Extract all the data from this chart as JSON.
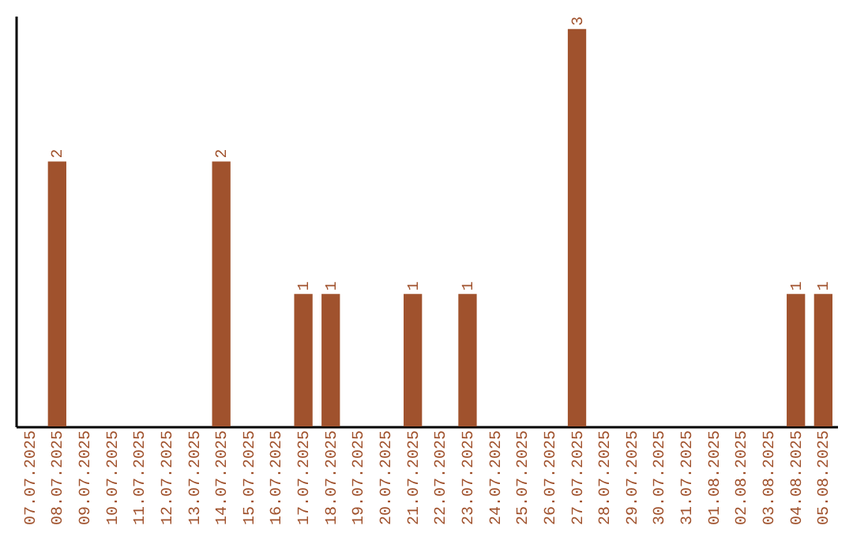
{
  "chart_data": {
    "type": "bar",
    "categories": [
      "07.07.2025",
      "08.07.2025",
      "09.07.2025",
      "10.07.2025",
      "11.07.2025",
      "12.07.2025",
      "13.07.2025",
      "14.07.2025",
      "15.07.2025",
      "16.07.2025",
      "17.07.2025",
      "18.07.2025",
      "19.07.2025",
      "20.07.2025",
      "21.07.2025",
      "22.07.2025",
      "23.07.2025",
      "24.07.2025",
      "25.07.2025",
      "26.07.2025",
      "27.07.2025",
      "28.07.2025",
      "29.07.2025",
      "30.07.2025",
      "31.07.2025",
      "01.08.2025",
      "02.08.2025",
      "03.08.2025",
      "04.08.2025",
      "05.08.2025"
    ],
    "values": [
      null,
      2,
      null,
      null,
      null,
      null,
      null,
      2,
      null,
      null,
      1,
      1,
      null,
      null,
      1,
      null,
      1,
      null,
      null,
      null,
      3,
      null,
      null,
      null,
      null,
      null,
      null,
      null,
      1,
      1
    ],
    "color": "#a0522d",
    "ylim": [
      0,
      3.1
    ],
    "data_labels": true,
    "tick_labels": "x",
    "grid": false
  }
}
